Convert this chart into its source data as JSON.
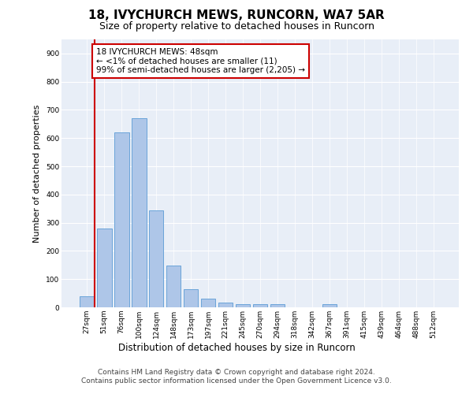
{
  "title": "18, IVYCHURCH MEWS, RUNCORN, WA7 5AR",
  "subtitle": "Size of property relative to detached houses in Runcorn",
  "xlabel": "Distribution of detached houses by size in Runcorn",
  "ylabel": "Number of detached properties",
  "bar_color": "#aec6e8",
  "bar_edge_color": "#5b9bd5",
  "annotation_line_color": "#cc0000",
  "annotation_box_edge_color": "#cc0000",
  "annotation_text": "18 IVYCHURCH MEWS: 48sqm\n← <1% of detached houses are smaller (11)\n99% of semi-detached houses are larger (2,205) →",
  "annotation_fontsize": 7.5,
  "categories": [
    "27sqm",
    "51sqm",
    "76sqm",
    "100sqm",
    "124sqm",
    "148sqm",
    "173sqm",
    "197sqm",
    "221sqm",
    "245sqm",
    "270sqm",
    "294sqm",
    "318sqm",
    "342sqm",
    "367sqm",
    "391sqm",
    "415sqm",
    "439sqm",
    "464sqm",
    "488sqm",
    "512sqm"
  ],
  "values": [
    40,
    280,
    620,
    670,
    345,
    147,
    65,
    32,
    17,
    12,
    12,
    11,
    0,
    0,
    11,
    0,
    0,
    0,
    0,
    0,
    0
  ],
  "ylim": [
    0,
    950
  ],
  "yticks": [
    0,
    100,
    200,
    300,
    400,
    500,
    600,
    700,
    800,
    900
  ],
  "background_color": "#e8eef7",
  "footer_text": "Contains HM Land Registry data © Crown copyright and database right 2024.\nContains public sector information licensed under the Open Government Licence v3.0.",
  "title_fontsize": 11,
  "subtitle_fontsize": 9,
  "xlabel_fontsize": 8.5,
  "ylabel_fontsize": 8,
  "footer_fontsize": 6.5,
  "tick_fontsize": 6.5
}
